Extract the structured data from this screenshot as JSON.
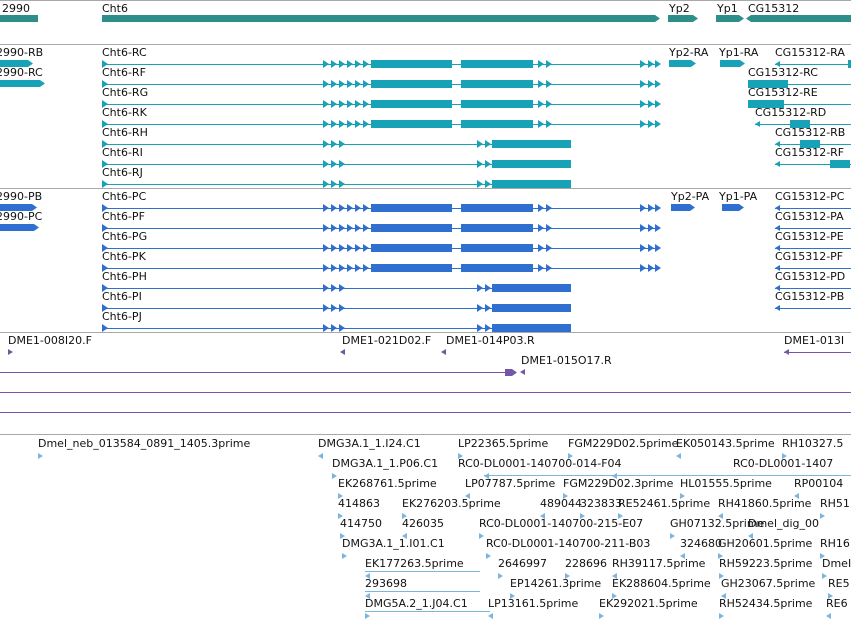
{
  "colors": {
    "gene": "#2e8f8a",
    "mrna": "#17a2b8",
    "protein": "#2f6fcf",
    "clone": "#7556a8",
    "est": "#7ab6de"
  },
  "gene_track": {
    "genes": [
      "2990",
      "Cht6",
      "Yp2",
      "Yp1",
      "CG15312"
    ]
  },
  "mrna_track": {
    "left": [
      "2990-RB",
      "2990-RC"
    ],
    "transcripts": [
      "Cht6-RC",
      "Cht6-RF",
      "Cht6-RG",
      "Cht6-RK",
      "Cht6-RH",
      "Cht6-RI",
      "Cht6-RJ"
    ],
    "yp2": "Yp2-RA",
    "yp1": "Yp1-RA",
    "right": [
      "CG15312-RA",
      "CG15312-RC",
      "CG15312-RE",
      "CG15312-RD",
      "CG15312-RB",
      "CG15312-RF"
    ]
  },
  "protein_track": {
    "left": [
      "2990-PB",
      "2990-PC"
    ],
    "proteins": [
      "Cht6-PC",
      "Cht6-PF",
      "Cht6-PG",
      "Cht6-PK",
      "Cht6-PH",
      "Cht6-PI",
      "Cht6-PJ"
    ],
    "yp2": "Yp2-PA",
    "yp1": "Yp1-PA",
    "right": [
      "CG15312-PC",
      "CG15312-PA",
      "CG15312-PE",
      "CG15312-PF",
      "CG15312-PD",
      "CG15312-PB"
    ]
  },
  "clone_track": {
    "clones": [
      "DME1-008I20.F",
      "DME1-021D02.F",
      "DME1-014P03.R",
      "DME1-015O17.R",
      "DME1-013I"
    ]
  },
  "est_track": {
    "labels": [
      "Dmel_neb_013584_0891_1405.3prime",
      "DMG3A.1_1.I24.C1",
      "LP22365.5prime",
      "FGM229D02.5prime",
      "EK050143.5prime",
      "RH10327.5",
      "DMG3A.1_1.P06.C1",
      "RC0-DL0001-140700-014-F04",
      "RC0-DL0001-1407",
      "EK268761.5prime",
      "LP07787.5prime",
      "FGM229D02.3prime",
      "HL01555.5prime",
      "RP00104",
      "414863",
      "EK276203.5prime",
      "489044",
      "323833",
      "RE52461.5prime",
      "RH41860.5prime",
      "RH51",
      "414750",
      "426035",
      "RC0-DL0001-140700-215-E07",
      "GH07132.5prime",
      "Dmel_dig_00",
      "DMG3A.1_1.I01.C1",
      "RC0-DL0001-140700-211-B03",
      "324680",
      "GH20601.5prime",
      "RH16",
      "EK177263.5prime",
      "2646997",
      "228696",
      "RH39117.5prime",
      "RH59223.5prime",
      "DmeI",
      "293698",
      "EP14261.3prime",
      "EK288604.5prime",
      "GH23067.5prime",
      "RE5",
      "DMG5A.2_1.J04.C1",
      "LP13161.5prime",
      "EK292021.5prime",
      "RH52434.5prime",
      "RE6"
    ]
  }
}
